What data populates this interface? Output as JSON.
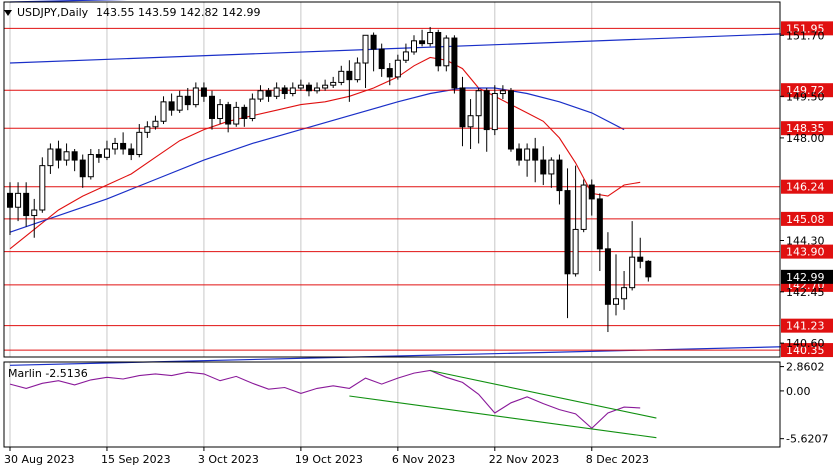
{
  "header": {
    "symbol_text": "USDJPY,Daily",
    "ohlc_text": "143.55 143.59 142.82 142.99"
  },
  "colors": {
    "candle": "#000000",
    "grid": "#c8c8c8",
    "level": "#e01010",
    "ma_fast": "#e01010",
    "ma_slow": "#1a2fc8",
    "channel": "#1a2fc8",
    "trend": "#109010",
    "marlin": "#8a1a9a",
    "axis_text": "#000000",
    "price_label_bg": "#e01010"
  },
  "chart_data": [
    {
      "type": "candlestick",
      "y_tick_labels": [
        "151.70",
        "149.50",
        "148.00",
        "144.30",
        "142.45",
        "140.60"
      ],
      "y_tick_values": [
        151.7,
        149.5,
        148.0,
        144.3,
        142.45,
        140.6
      ],
      "current_price_label": "142.99",
      "current_price": 142.99,
      "ylim": [
        140.1,
        152.9
      ],
      "x_tick_labels": [
        "30 Aug 2023",
        "15 Sep 2023",
        "3 Oct 2023",
        "19 Oct 2023",
        "6 Nov 2023",
        "22 Nov 2023",
        "8 Dec 2023"
      ],
      "x_tick_index": [
        0,
        12,
        24,
        36,
        48,
        60,
        72
      ],
      "levels": [
        {
          "label": "151.95",
          "value": 151.95
        },
        {
          "label": "149.72",
          "value": 149.72
        },
        {
          "label": "148.35",
          "value": 148.35
        },
        {
          "label": "146.24",
          "value": 146.24
        },
        {
          "label": "145.08",
          "value": 145.08
        },
        {
          "label": "143.90",
          "value": 143.9
        },
        {
          "label": "142.70",
          "value": 142.7
        },
        {
          "label": "141.23",
          "value": 141.23
        },
        {
          "label": "140.35",
          "value": 140.35
        }
      ],
      "candles": [
        [
          146.0,
          145.5,
          146.4,
          144.5
        ],
        [
          145.5,
          146.0,
          146.4,
          145.0
        ],
        [
          146.0,
          145.2,
          146.4,
          144.8
        ],
        [
          145.2,
          145.4,
          145.8,
          144.4
        ],
        [
          145.4,
          147.0,
          147.3,
          145.3
        ],
        [
          147.0,
          147.6,
          147.8,
          146.7
        ],
        [
          147.6,
          147.2,
          147.9,
          146.9
        ],
        [
          147.2,
          147.5,
          147.8,
          147.0
        ],
        [
          147.5,
          147.2,
          147.6,
          146.8
        ],
        [
          147.2,
          146.6,
          147.4,
          146.2
        ],
        [
          146.6,
          147.4,
          147.6,
          146.5
        ],
        [
          147.4,
          147.3,
          147.6,
          147.1
        ],
        [
          147.3,
          147.6,
          147.9,
          147.2
        ],
        [
          147.6,
          147.8,
          148.0,
          147.4
        ],
        [
          147.8,
          147.6,
          148.2,
          147.4
        ],
        [
          147.6,
          147.4,
          147.8,
          147.2
        ],
        [
          147.4,
          148.2,
          148.5,
          147.3
        ],
        [
          148.2,
          148.4,
          148.6,
          148.0
        ],
        [
          148.4,
          148.6,
          148.8,
          148.3
        ],
        [
          148.6,
          149.3,
          149.5,
          148.5
        ],
        [
          149.3,
          149.0,
          149.6,
          148.8
        ],
        [
          149.0,
          149.5,
          149.7,
          148.9
        ],
        [
          149.5,
          149.2,
          149.8,
          149.0
        ],
        [
          149.2,
          149.8,
          150.0,
          149.1
        ],
        [
          149.8,
          149.5,
          150.0,
          149.3
        ],
        [
          149.5,
          148.7,
          149.7,
          148.3
        ],
        [
          148.7,
          149.2,
          149.4,
          148.5
        ],
        [
          149.2,
          148.5,
          149.3,
          148.2
        ],
        [
          148.5,
          149.1,
          149.3,
          148.4
        ],
        [
          149.1,
          148.7,
          149.2,
          148.4
        ],
        [
          148.7,
          149.4,
          149.6,
          148.6
        ],
        [
          149.4,
          149.7,
          149.9,
          149.3
        ],
        [
          149.7,
          149.5,
          149.8,
          149.3
        ],
        [
          149.5,
          149.8,
          150.0,
          149.4
        ],
        [
          149.8,
          149.6,
          149.9,
          149.4
        ],
        [
          149.6,
          149.8,
          150.0,
          149.5
        ],
        [
          149.8,
          149.9,
          150.1,
          149.7
        ],
        [
          149.9,
          149.7,
          150.0,
          149.5
        ],
        [
          149.7,
          149.8,
          150.0,
          149.6
        ],
        [
          149.8,
          149.9,
          150.1,
          149.7
        ],
        [
          149.9,
          150.0,
          150.2,
          149.8
        ],
        [
          150.0,
          150.4,
          150.6,
          149.9
        ],
        [
          150.4,
          150.1,
          150.8,
          149.3
        ],
        [
          150.1,
          150.7,
          150.9,
          150.0
        ],
        [
          150.7,
          151.7,
          151.7,
          149.8
        ],
        [
          151.7,
          151.2,
          151.8,
          150.4
        ],
        [
          151.2,
          150.5,
          151.4,
          150.2
        ],
        [
          150.5,
          150.2,
          150.7,
          149.9
        ],
        [
          150.2,
          150.8,
          151.0,
          150.1
        ],
        [
          150.8,
          151.1,
          151.4,
          150.7
        ],
        [
          151.1,
          151.5,
          151.7,
          151.0
        ],
        [
          151.5,
          151.4,
          151.9,
          151.3
        ],
        [
          151.4,
          151.8,
          152.0,
          151.3
        ],
        [
          151.8,
          150.6,
          151.9,
          150.4
        ],
        [
          150.6,
          151.6,
          151.7,
          150.4
        ],
        [
          151.6,
          149.8,
          151.7,
          149.6
        ],
        [
          149.8,
          148.4,
          150.2,
          147.7
        ],
        [
          148.4,
          148.8,
          149.4,
          147.6
        ],
        [
          148.8,
          149.7,
          149.8,
          147.8
        ],
        [
          149.7,
          148.3,
          149.8,
          147.5
        ],
        [
          148.3,
          149.6,
          149.9,
          148.1
        ],
        [
          149.6,
          149.7,
          149.9,
          149.4
        ],
        [
          149.7,
          147.6,
          149.8,
          147.5
        ],
        [
          147.6,
          147.2,
          147.8,
          147.0
        ],
        [
          147.2,
          147.6,
          147.8,
          146.6
        ],
        [
          147.6,
          147.2,
          148.0,
          146.4
        ],
        [
          147.2,
          146.7,
          147.7,
          146.3
        ],
        [
          146.7,
          147.2,
          147.3,
          146.2
        ],
        [
          147.2,
          146.1,
          147.4,
          145.6
        ],
        [
          146.1,
          143.1,
          146.9,
          141.5
        ],
        [
          143.1,
          144.7,
          147.0,
          143.0
        ],
        [
          144.7,
          146.3,
          146.5,
          144.6
        ],
        [
          146.3,
          145.8,
          146.5,
          145.2
        ],
        [
          145.8,
          144.0,
          146.0,
          143.2
        ],
        [
          144.0,
          142.0,
          144.6,
          141.0
        ],
        [
          142.0,
          142.2,
          143.8,
          141.6
        ],
        [
          142.2,
          142.6,
          143.2,
          141.8
        ],
        [
          142.6,
          143.7,
          145.0,
          142.5
        ],
        [
          143.7,
          143.55,
          144.4,
          143.3
        ],
        [
          143.55,
          142.99,
          143.59,
          142.82
        ]
      ],
      "ma_fast": [
        [
          0,
          144.0
        ],
        [
          3,
          144.7
        ],
        [
          6,
          145.4
        ],
        [
          9,
          145.9
        ],
        [
          12,
          146.3
        ],
        [
          15,
          146.7
        ],
        [
          18,
          147.3
        ],
        [
          21,
          147.9
        ],
        [
          24,
          148.3
        ],
        [
          27,
          148.6
        ],
        [
          30,
          148.8
        ],
        [
          33,
          149.0
        ],
        [
          36,
          149.2
        ],
        [
          39,
          149.3
        ],
        [
          42,
          149.5
        ],
        [
          45,
          149.8
        ],
        [
          48,
          150.2
        ],
        [
          50,
          150.6
        ],
        [
          52,
          150.9
        ],
        [
          54,
          150.8
        ],
        [
          56,
          150.5
        ],
        [
          58,
          149.8
        ],
        [
          60,
          149.5
        ],
        [
          62,
          149.2
        ],
        [
          64,
          148.9
        ],
        [
          66,
          148.6
        ],
        [
          68,
          148.0
        ],
        [
          70,
          147.1
        ],
        [
          72,
          146.0
        ],
        [
          74,
          145.9
        ],
        [
          76,
          146.3
        ],
        [
          78,
          146.4
        ]
      ],
      "ma_slow": [
        [
          0,
          144.6
        ],
        [
          6,
          145.2
        ],
        [
          12,
          145.8
        ],
        [
          18,
          146.5
        ],
        [
          24,
          147.2
        ],
        [
          30,
          147.8
        ],
        [
          36,
          148.3
        ],
        [
          42,
          148.8
        ],
        [
          48,
          149.3
        ],
        [
          52,
          149.6
        ],
        [
          56,
          149.8
        ],
        [
          60,
          149.8
        ],
        [
          64,
          149.6
        ],
        [
          68,
          149.3
        ],
        [
          72,
          148.9
        ],
        [
          76,
          148.3
        ]
      ],
      "channel": [
        [
          0,
          152.9
        ],
        [
          62,
          153.3
        ],
        [
          0,
          150.7
        ],
        [
          100,
          151.8
        ],
        [
          0,
          139.8
        ],
        [
          100,
          140.5
        ]
      ]
    },
    {
      "type": "line",
      "indicator_label": "Marlin -2.5136",
      "y_tick_labels": [
        "2.8602",
        "0.00",
        "-5.6207"
      ],
      "y_tick_values": [
        2.8602,
        0.0,
        -5.6207
      ],
      "ylim": [
        -6.6,
        3.4
      ],
      "values": [
        [
          0,
          0.8
        ],
        [
          2,
          0.3
        ],
        [
          4,
          0.9
        ],
        [
          6,
          1.2
        ],
        [
          8,
          0.7
        ],
        [
          10,
          1.3
        ],
        [
          12,
          1.6
        ],
        [
          14,
          1.4
        ],
        [
          16,
          1.8
        ],
        [
          18,
          2.0
        ],
        [
          20,
          1.8
        ],
        [
          22,
          2.2
        ],
        [
          24,
          2.0
        ],
        [
          26,
          1.2
        ],
        [
          28,
          1.7
        ],
        [
          30,
          0.9
        ],
        [
          32,
          0.2
        ],
        [
          34,
          0.4
        ],
        [
          36,
          -0.3
        ],
        [
          38,
          0.3
        ],
        [
          40,
          0.6
        ],
        [
          42,
          0.3
        ],
        [
          44,
          1.5
        ],
        [
          46,
          0.8
        ],
        [
          48,
          1.5
        ],
        [
          50,
          2.1
        ],
        [
          52,
          2.4
        ],
        [
          54,
          1.6
        ],
        [
          56,
          1.0
        ],
        [
          58,
          -0.4
        ],
        [
          60,
          -2.6
        ],
        [
          62,
          -1.4
        ],
        [
          64,
          -0.7
        ],
        [
          66,
          -1.5
        ],
        [
          68,
          -2.2
        ],
        [
          70,
          -2.7
        ],
        [
          72,
          -4.4
        ],
        [
          74,
          -2.6
        ],
        [
          76,
          -1.9
        ],
        [
          78,
          -2.0
        ]
      ],
      "trend_lines": [
        [
          42,
          -0.6,
          80,
          -5.5
        ],
        [
          52,
          2.4,
          80,
          -3.2
        ]
      ]
    }
  ]
}
